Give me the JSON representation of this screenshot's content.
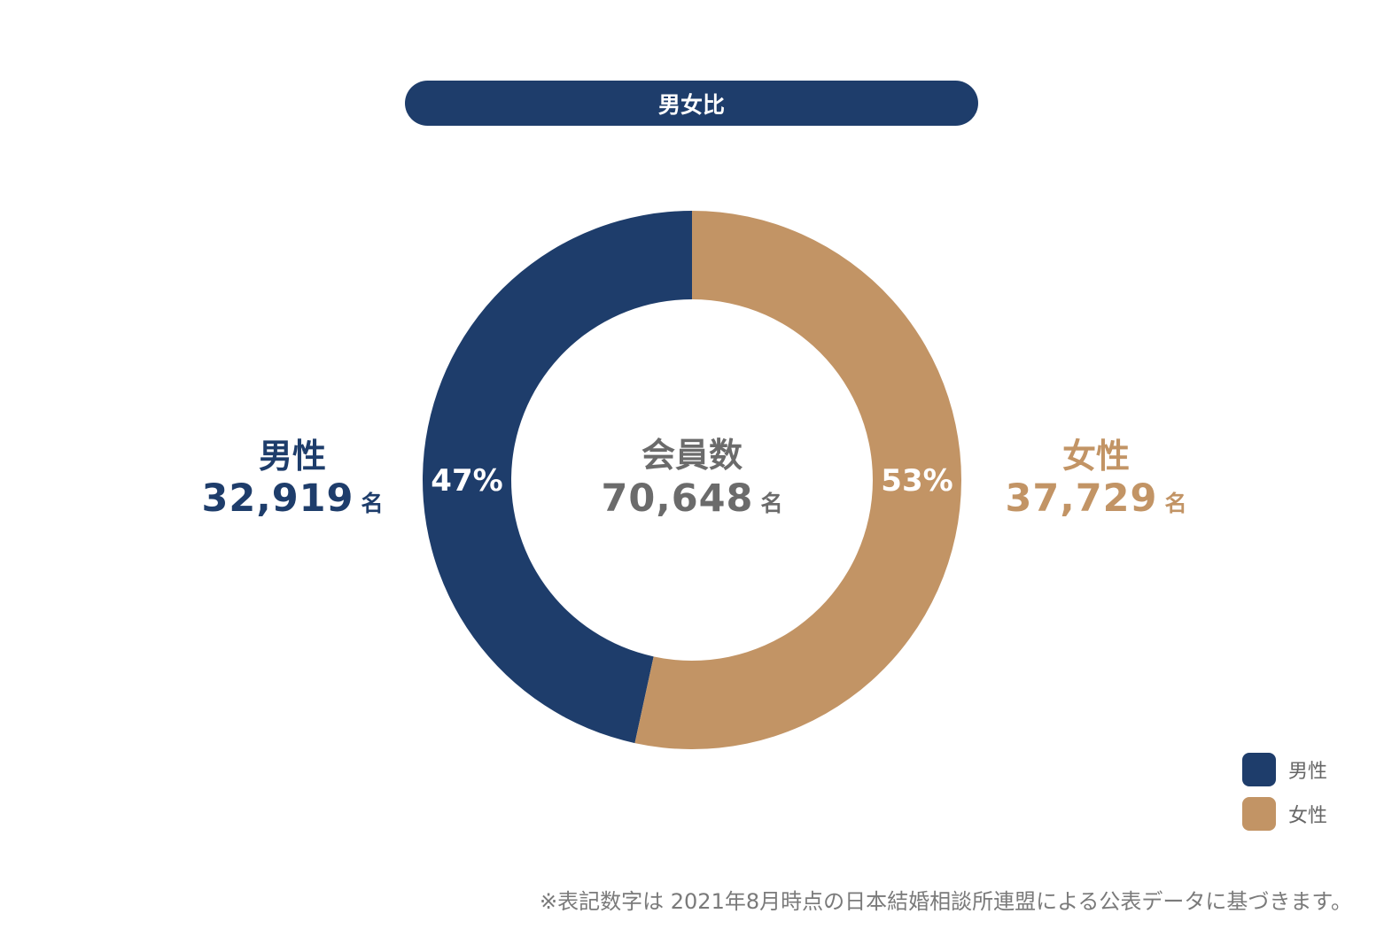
{
  "colors": {
    "male": "#1e3d6b",
    "female": "#c29465",
    "center_text": "#6b6b6b"
  },
  "title": "男女比",
  "center": {
    "label": "会員数",
    "value": "70,648",
    "unit": "名"
  },
  "male": {
    "label": "男性",
    "value": "32,919",
    "unit": "名",
    "pct_label": "47%"
  },
  "female": {
    "label": "女性",
    "value": "37,729",
    "unit": "名",
    "pct_label": "53%"
  },
  "legend": [
    {
      "label": "男性",
      "color": "#1e3d6b"
    },
    {
      "label": "女性",
      "color": "#c29465"
    }
  ],
  "footnote": "※表記数字は 2021年8月時点の日本結婚相談所連盟による公表データに基づきます。",
  "chart_data": {
    "type": "pie",
    "title": "男女比",
    "categories": [
      "男性",
      "女性"
    ],
    "values": [
      32919,
      37729
    ],
    "percent_labels": [
      "47%",
      "53%"
    ],
    "total": 70648,
    "legend_position": "bottom-right"
  }
}
